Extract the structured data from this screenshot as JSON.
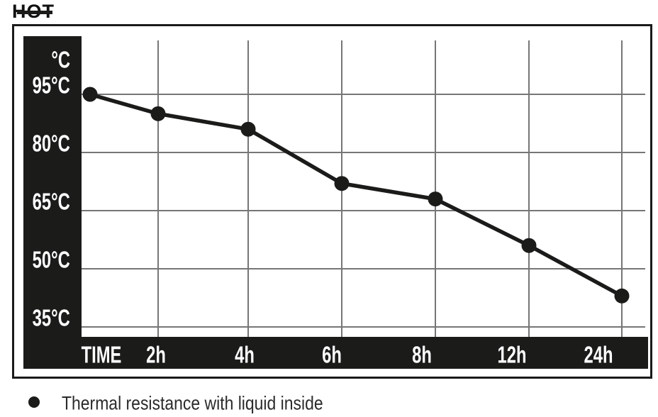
{
  "colors": {
    "background": "#ffffff",
    "ink": "#1b1b1a",
    "grid": "#767676",
    "axis_band": "#1b1b1a",
    "axis_text": "#ffffff",
    "legend_text": "#2b2b2b"
  },
  "chart_data": {
    "type": "line",
    "title": "HOT",
    "y_unit": "°C",
    "categories": [
      "TIME",
      "2h",
      "4h",
      "6h",
      "8h",
      "12h",
      "24h"
    ],
    "y_ticks": [
      95,
      80,
      65,
      50,
      35
    ],
    "y_tick_labels": [
      "95°C",
      "80°C",
      "65°C",
      "50°C",
      "35°C"
    ],
    "ylim": [
      30,
      100
    ],
    "grid": true,
    "legend_position": "bottom-left",
    "series": [
      {
        "name": "Thermal resistance with liquid inside",
        "values": [
          95,
          90,
          86,
          72,
          68,
          56,
          43
        ]
      }
    ]
  },
  "legend": {
    "label": "Thermal resistance with liquid inside"
  }
}
